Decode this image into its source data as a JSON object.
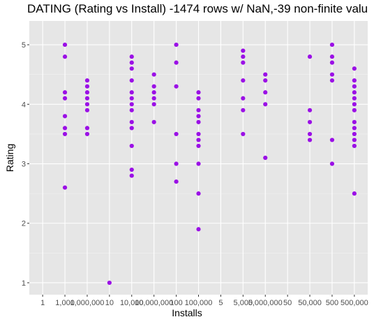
{
  "chart_data": {
    "type": "scatter",
    "title": "DATING (Rating vs Install) -1474 rows w/ NaN,-39 non-finite valu",
    "xlabel": "Installs",
    "ylabel": "Rating",
    "x_scale": "categorical",
    "x_categories": [
      "1",
      "1,000",
      "1,000,000",
      "10",
      "10,000",
      "10,000,000",
      "100",
      "100,000",
      "5",
      "5,000",
      "5,000,000",
      "50",
      "50,000",
      "500",
      "500,000"
    ],
    "ylim": [
      0.8,
      5.4
    ],
    "y_ticks": [
      1,
      2,
      3,
      4,
      5
    ],
    "grid": true,
    "background": "#e6e6e6",
    "point_color": "#9b10e6",
    "points": [
      {
        "x": "1,000",
        "y": 5.0
      },
      {
        "x": "1,000",
        "y": 4.8
      },
      {
        "x": "1,000",
        "y": 4.2
      },
      {
        "x": "1,000",
        "y": 4.1
      },
      {
        "x": "1,000",
        "y": 3.8
      },
      {
        "x": "1,000",
        "y": 3.6
      },
      {
        "x": "1,000",
        "y": 3.5
      },
      {
        "x": "1,000",
        "y": 2.6
      },
      {
        "x": "1,000,000",
        "y": 4.4
      },
      {
        "x": "1,000,000",
        "y": 4.3
      },
      {
        "x": "1,000,000",
        "y": 4.2
      },
      {
        "x": "1,000,000",
        "y": 4.1
      },
      {
        "x": "1,000,000",
        "y": 4.0
      },
      {
        "x": "1,000,000",
        "y": 3.9
      },
      {
        "x": "1,000,000",
        "y": 3.6
      },
      {
        "x": "1,000,000",
        "y": 3.5
      },
      {
        "x": "10",
        "y": 1.0
      },
      {
        "x": "10,000",
        "y": 4.8
      },
      {
        "x": "10,000",
        "y": 4.7
      },
      {
        "x": "10,000",
        "y": 4.6
      },
      {
        "x": "10,000",
        "y": 4.4
      },
      {
        "x": "10,000",
        "y": 4.2
      },
      {
        "x": "10,000",
        "y": 4.1
      },
      {
        "x": "10,000",
        "y": 4.0
      },
      {
        "x": "10,000",
        "y": 3.9
      },
      {
        "x": "10,000",
        "y": 3.7
      },
      {
        "x": "10,000",
        "y": 3.6
      },
      {
        "x": "10,000",
        "y": 3.3
      },
      {
        "x": "10,000",
        "y": 2.9
      },
      {
        "x": "10,000",
        "y": 2.8
      },
      {
        "x": "10,000,000",
        "y": 4.5
      },
      {
        "x": "10,000,000",
        "y": 4.3
      },
      {
        "x": "10,000,000",
        "y": 4.2
      },
      {
        "x": "10,000,000",
        "y": 4.1
      },
      {
        "x": "10,000,000",
        "y": 4.0
      },
      {
        "x": "10,000,000",
        "y": 3.7
      },
      {
        "x": "100",
        "y": 5.0
      },
      {
        "x": "100",
        "y": 4.7
      },
      {
        "x": "100",
        "y": 4.3
      },
      {
        "x": "100",
        "y": 3.5
      },
      {
        "x": "100",
        "y": 3.0
      },
      {
        "x": "100",
        "y": 2.7
      },
      {
        "x": "100,000",
        "y": 4.2
      },
      {
        "x": "100,000",
        "y": 4.1
      },
      {
        "x": "100,000",
        "y": 3.9
      },
      {
        "x": "100,000",
        "y": 3.8
      },
      {
        "x": "100,000",
        "y": 3.7
      },
      {
        "x": "100,000",
        "y": 3.5
      },
      {
        "x": "100,000",
        "y": 3.4
      },
      {
        "x": "100,000",
        "y": 3.3
      },
      {
        "x": "100,000",
        "y": 3.0
      },
      {
        "x": "100,000",
        "y": 2.5
      },
      {
        "x": "100,000",
        "y": 1.9
      },
      {
        "x": "5,000",
        "y": 4.9
      },
      {
        "x": "5,000",
        "y": 4.8
      },
      {
        "x": "5,000",
        "y": 4.7
      },
      {
        "x": "5,000",
        "y": 4.4
      },
      {
        "x": "5,000",
        "y": 4.1
      },
      {
        "x": "5,000",
        "y": 3.9
      },
      {
        "x": "5,000",
        "y": 3.5
      },
      {
        "x": "5,000,000",
        "y": 4.5
      },
      {
        "x": "5,000,000",
        "y": 4.4
      },
      {
        "x": "5,000,000",
        "y": 4.2
      },
      {
        "x": "5,000,000",
        "y": 4.0
      },
      {
        "x": "5,000,000",
        "y": 3.1
      },
      {
        "x": "50,000",
        "y": 4.8
      },
      {
        "x": "50,000",
        "y": 3.9
      },
      {
        "x": "50,000",
        "y": 3.7
      },
      {
        "x": "50,000",
        "y": 3.5
      },
      {
        "x": "50,000",
        "y": 3.4
      },
      {
        "x": "500",
        "y": 5.0
      },
      {
        "x": "500",
        "y": 4.8
      },
      {
        "x": "500",
        "y": 4.7
      },
      {
        "x": "500",
        "y": 4.5
      },
      {
        "x": "500",
        "y": 4.4
      },
      {
        "x": "500",
        "y": 3.4
      },
      {
        "x": "500",
        "y": 3.0
      },
      {
        "x": "500,000",
        "y": 4.6
      },
      {
        "x": "500,000",
        "y": 4.4
      },
      {
        "x": "500,000",
        "y": 4.3
      },
      {
        "x": "500,000",
        "y": 4.2
      },
      {
        "x": "500,000",
        "y": 4.1
      },
      {
        "x": "500,000",
        "y": 4.0
      },
      {
        "x": "500,000",
        "y": 3.9
      },
      {
        "x": "500,000",
        "y": 3.7
      },
      {
        "x": "500,000",
        "y": 3.6
      },
      {
        "x": "500,000",
        "y": 3.5
      },
      {
        "x": "500,000",
        "y": 3.4
      },
      {
        "x": "500,000",
        "y": 3.3
      },
      {
        "x": "500,000",
        "y": 2.5
      }
    ]
  }
}
